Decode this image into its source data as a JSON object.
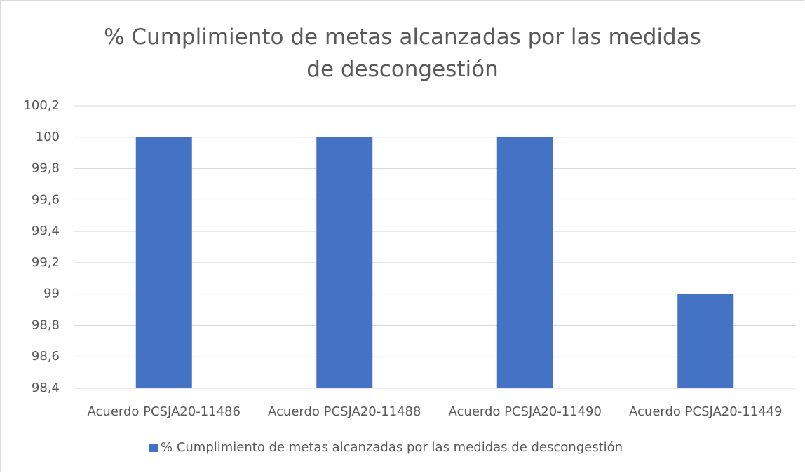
{
  "chart_data": {
    "type": "bar",
    "title": "% Cumplimiento de metas alcanzadas por las medidas de descongestión",
    "categories": [
      "Acuerdo PCSJA20-11486",
      "Acuerdo PCSJA20-11488",
      "Acuerdo PCSJA20-11490",
      "Acuerdo PCSJA20-11449"
    ],
    "series": [
      {
        "name": "% Cumplimiento de metas alcanzadas por las medidas de descongestión",
        "color": "#4472c4",
        "values": [
          100,
          100,
          100,
          99
        ]
      }
    ],
    "ylim": [
      98.4,
      100.2
    ],
    "yticks": [
      {
        "value": 98.4,
        "label": "98,4"
      },
      {
        "value": 98.6,
        "label": "98,6"
      },
      {
        "value": 98.8,
        "label": "98,8"
      },
      99,
      {
        "value": 99.2,
        "label": "99,2"
      },
      {
        "value": 99.4,
        "label": "99,4"
      },
      {
        "value": 99.6,
        "label": "99,6"
      },
      {
        "value": 99.8,
        "label": "99,8"
      },
      100,
      {
        "value": 100.2,
        "label": "100,2"
      }
    ],
    "grid": true,
    "legend": "bottom"
  }
}
